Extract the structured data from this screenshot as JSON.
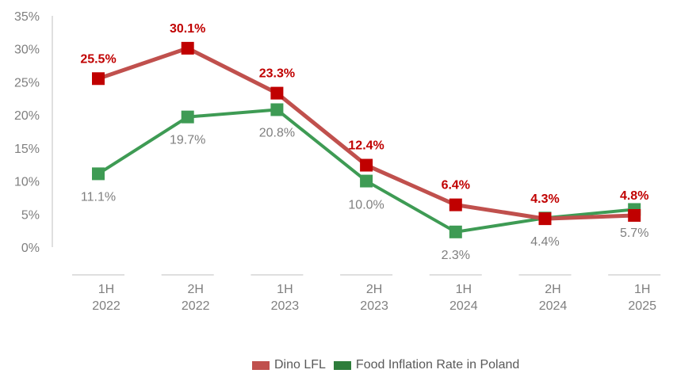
{
  "chart_data": {
    "type": "line",
    "title": "",
    "xlabel": "",
    "ylabel": "",
    "ylim": [
      0,
      35
    ],
    "yticks": [
      0,
      5,
      10,
      15,
      20,
      25,
      30,
      35
    ],
    "ytick_labels": [
      "0%",
      "5%",
      "10%",
      "15%",
      "20%",
      "25%",
      "30%",
      "35%"
    ],
    "categories": [
      {
        "half": "1H",
        "year": "2022"
      },
      {
        "half": "2H",
        "year": "2022"
      },
      {
        "half": "1H",
        "year": "2023"
      },
      {
        "half": "2H",
        "year": "2023"
      },
      {
        "half": "1H",
        "year": "2024"
      },
      {
        "half": "2H",
        "year": "2024"
      },
      {
        "half": "1H",
        "year": "2025"
      }
    ],
    "series": [
      {
        "name": "Dino LFL",
        "color": "#c0504d",
        "marker_color": "#c00000",
        "values": [
          25.5,
          30.1,
          23.3,
          12.4,
          6.4,
          4.3,
          4.8
        ],
        "labels": [
          "25.5%",
          "30.1%",
          "23.3%",
          "12.4%",
          "6.4%",
          "4.3%",
          "4.8%"
        ]
      },
      {
        "name": "Food Inflation Rate in Poland",
        "color": "#3e9b54",
        "marker_color": "#3e9b54",
        "legend_color": "#2e7d3b",
        "values": [
          11.1,
          19.7,
          20.8,
          10.0,
          2.3,
          4.4,
          5.7
        ],
        "labels": [
          "11.1%",
          "19.7%",
          "20.8%",
          "10.0%",
          "2.3%",
          "4.4%",
          "5.7%"
        ]
      }
    ],
    "legend": {
      "position": "bottom-center"
    }
  }
}
